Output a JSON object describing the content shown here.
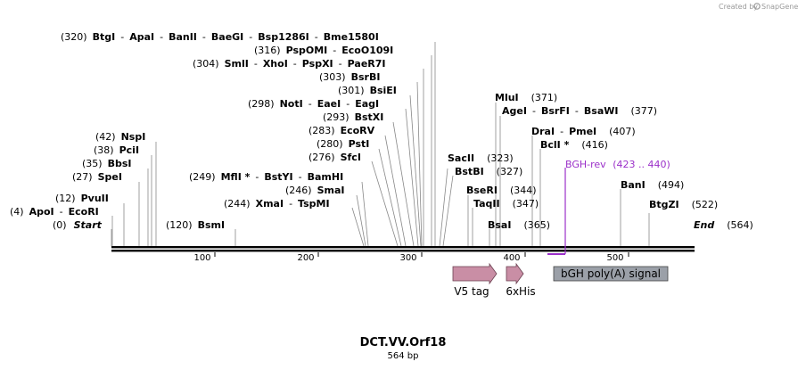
{
  "credit": {
    "prefix": "Created by",
    "brand": "SnapGene"
  },
  "title": "DCT.VV.Orf18",
  "subtitle": "564 bp",
  "colors": {
    "primer": "#9b30c9",
    "feature_pink": "#c98ea5",
    "feature_gray": "#9ba0a8"
  },
  "ticks": [
    "100",
    "200",
    "300",
    "400",
    "500"
  ],
  "labels": {
    "start": {
      "pos": "(0)",
      "name": "Start"
    },
    "end": {
      "pos": "(564)",
      "name": "End"
    },
    "apoi": {
      "pos": "(4)",
      "parts": [
        "ApoI",
        "EcoRI"
      ]
    },
    "pvuii": {
      "pos": "(12)",
      "parts": [
        "PvuII"
      ]
    },
    "spei": {
      "pos": "(27)",
      "parts": [
        "SpeI"
      ]
    },
    "bbsi": {
      "pos": "(35)",
      "parts": [
        "BbsI"
      ]
    },
    "pcli": {
      "pos": "(38)",
      "parts": [
        "PciI"
      ]
    },
    "nspi": {
      "pos": "(42)",
      "parts": [
        "NspI"
      ]
    },
    "bsmi": {
      "pos": "(120)",
      "parts": [
        "BsmI"
      ]
    },
    "xmai": {
      "pos": "(244)",
      "parts": [
        "XmaI",
        "TspMI"
      ]
    },
    "smai": {
      "pos": "(246)",
      "parts": [
        "SmaI"
      ]
    },
    "mfli": {
      "pos": "(249)",
      "parts": [
        "MflI *",
        "BstYI",
        "BamHI"
      ]
    },
    "sfci": {
      "pos": "(276)",
      "parts": [
        "SfcI"
      ]
    },
    "psti": {
      "pos": "(280)",
      "parts": [
        "PstI"
      ]
    },
    "ecorv": {
      "pos": "(283)",
      "parts": [
        "EcoRV"
      ]
    },
    "bstxi": {
      "pos": "(293)",
      "parts": [
        "BstXI"
      ]
    },
    "noti": {
      "pos": "(298)",
      "parts": [
        "NotI",
        "EaeI",
        "EagI"
      ]
    },
    "bsiei": {
      "pos": "(301)",
      "parts": [
        "BsiEI"
      ]
    },
    "bsrbi": {
      "pos": "(303)",
      "parts": [
        "BsrBI"
      ]
    },
    "smli": {
      "pos": "(304)",
      "parts": [
        "SmlI",
        "XhoI",
        "PspXI",
        "PaeR7I"
      ]
    },
    "pspomi": {
      "pos": "(316)",
      "parts": [
        "PspOMI",
        "EcoO109I"
      ]
    },
    "btgi": {
      "pos": "(320)",
      "parts": [
        "BtgI",
        "ApaI",
        "BanII",
        "BaeGI",
        "Bsp1286I",
        "Bme1580I"
      ]
    },
    "sacii": {
      "pos": "(323)",
      "parts": [
        "SacII"
      ]
    },
    "bstbi": {
      "pos": "(327)",
      "parts": [
        "BstBI"
      ]
    },
    "bseri": {
      "pos": "(344)",
      "parts": [
        "BseRI"
      ]
    },
    "taqii": {
      "pos": "(347)",
      "parts": [
        "TaqII"
      ]
    },
    "bsai": {
      "pos": "(365)",
      "parts": [
        "BsaI"
      ]
    },
    "mlui": {
      "pos": "(371)",
      "parts": [
        "MluI"
      ]
    },
    "agei": {
      "pos": "(377)",
      "parts": [
        "AgeI",
        "BsrFI",
        "BsaWI"
      ]
    },
    "drai": {
      "pos": "(407)",
      "parts": [
        "DraI",
        "PmeI"
      ]
    },
    "bcli": {
      "pos": "(416)",
      "parts": [
        "BclI *"
      ]
    },
    "bani": {
      "pos": "(494)",
      "parts": [
        "BanI"
      ]
    },
    "btgzi": {
      "pos": "(522)",
      "parts": [
        "BtgZI"
      ]
    }
  },
  "primer": {
    "name": "BGH-rev",
    "range": "(423 .. 440)"
  },
  "features": {
    "v5": "V5 tag",
    "his": "6xHis",
    "bgh": "bGH poly(A) signal"
  }
}
